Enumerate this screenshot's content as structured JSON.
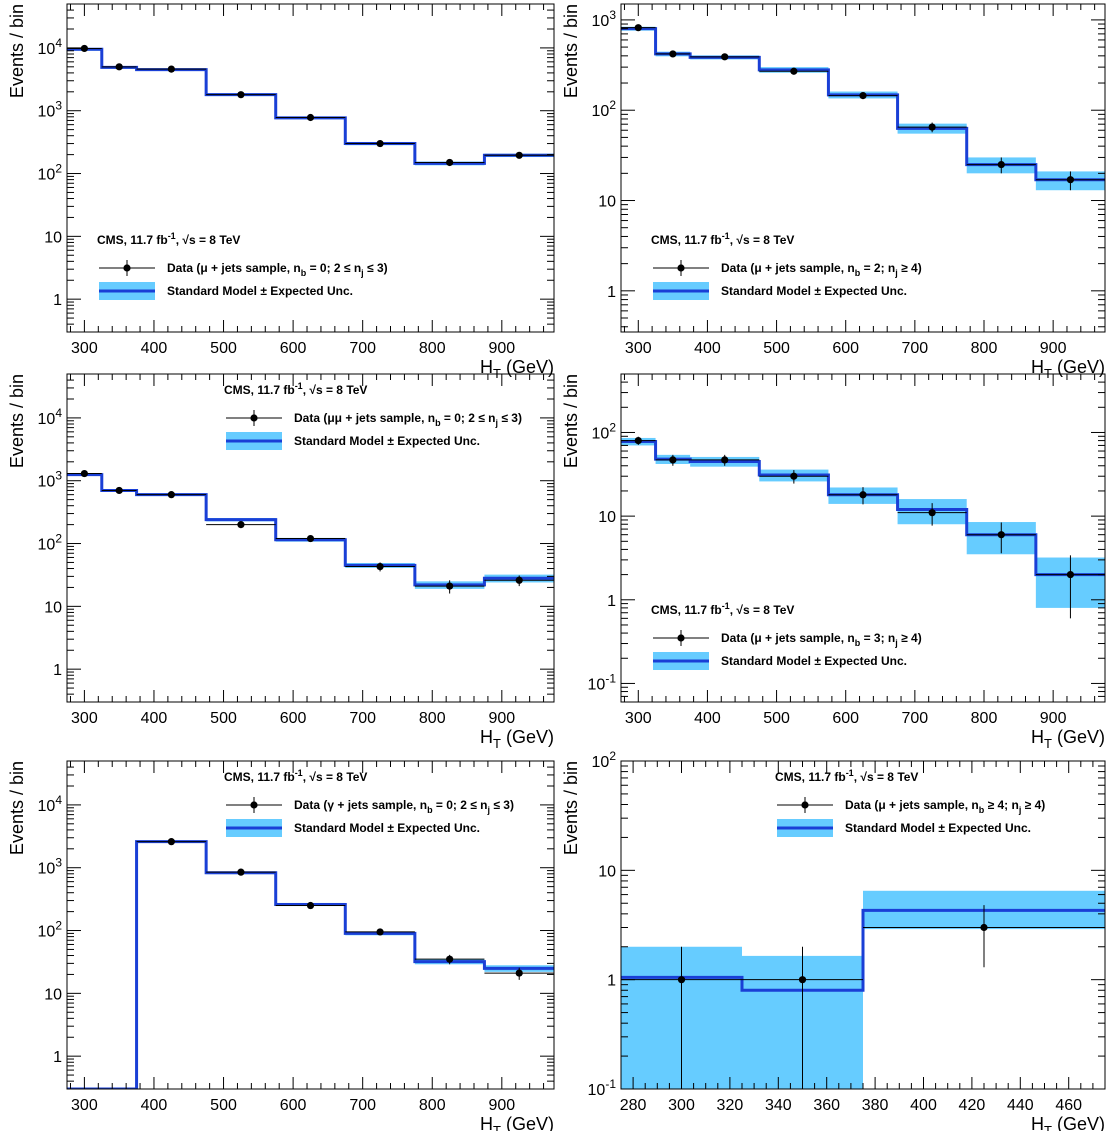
{
  "figure": {
    "panel_axis_labels": {
      "x": "H_T (GeV)",
      "y": "Events / bin"
    },
    "legend": {
      "cms_text": "CMS, 11.7 fb^-1, √s = 8 TeV",
      "model_label": "Standard Model ± Expected Unc."
    },
    "colors": {
      "model_line": "#1a3fd6",
      "uncertainty_band": "#66ccff",
      "data": "#000000"
    }
  },
  "chart_data": [
    {
      "type": "histogram",
      "panel": "top-left",
      "data_label": "Data (μ + jets sample, n_b = 0; 2 ≤ n_j ≤ 3)",
      "xlabel": "H_T (GeV)",
      "ylabel": "Events / bin",
      "xlim": [
        275,
        975
      ],
      "ylim": [
        0.3,
        50000
      ],
      "log_y": true,
      "x_ticks": [
        300,
        400,
        500,
        600,
        700,
        800,
        900
      ],
      "y_ticks": [
        {
          "v": 1,
          "t": "1"
        },
        {
          "v": 10,
          "t": "10"
        },
        {
          "v": 100,
          "t": "10^2"
        },
        {
          "v": 1000,
          "t": "10^3"
        },
        {
          "v": 10000,
          "t": "10^4"
        }
      ],
      "legend_position": "bottom-left",
      "bin_edges": [
        275,
        325,
        375,
        475,
        575,
        675,
        775,
        875,
        975
      ],
      "model": [
        9500,
        4900,
        4500,
        1800,
        770,
        300,
        145,
        195
      ],
      "model_unc": [
        500,
        250,
        220,
        90,
        40,
        18,
        10,
        12
      ],
      "data_x": [
        300,
        350,
        425,
        525,
        625,
        725,
        825,
        925
      ],
      "data_y": [
        9800,
        5000,
        4600,
        1800,
        780,
        300,
        150,
        195
      ],
      "data_err": [
        99,
        71,
        68,
        42,
        28,
        17,
        12,
        14
      ]
    },
    {
      "type": "histogram",
      "panel": "top-right",
      "data_label": "Data (μ + jets sample, n_b = 2; n_j ≥ 4)",
      "xlabel": "H_T (GeV)",
      "ylabel": "Events / bin",
      "xlim": [
        275,
        975
      ],
      "ylim": [
        0.35,
        1500
      ],
      "log_y": true,
      "x_ticks": [
        300,
        400,
        500,
        600,
        700,
        800,
        900
      ],
      "y_ticks": [
        {
          "v": 1,
          "t": "1"
        },
        {
          "v": 10,
          "t": "10"
        },
        {
          "v": 100,
          "t": "10^2"
        },
        {
          "v": 1000,
          "t": "10^3"
        }
      ],
      "legend_position": "bottom-left",
      "bin_edges": [
        275,
        325,
        375,
        475,
        575,
        675,
        775,
        875,
        975
      ],
      "model": [
        800,
        420,
        385,
        280,
        148,
        63,
        25,
        17
      ],
      "model_unc": [
        40,
        25,
        20,
        20,
        13,
        8,
        5,
        4
      ],
      "data_x": [
        300,
        350,
        425,
        525,
        625,
        725,
        825,
        925
      ],
      "data_y": [
        820,
        420,
        390,
        270,
        145,
        65,
        25,
        17
      ],
      "data_err": [
        29,
        20,
        20,
        16,
        12,
        8,
        5,
        4
      ]
    },
    {
      "type": "histogram",
      "panel": "middle-left",
      "data_label": "Data (μμ + jets sample, n_b = 0; 2 ≤ n_j ≤ 3)",
      "xlabel": "H_T (GeV)",
      "ylabel": "Events / bin",
      "xlim": [
        275,
        975
      ],
      "ylim": [
        0.3,
        50000
      ],
      "log_y": true,
      "x_ticks": [
        300,
        400,
        500,
        600,
        700,
        800,
        900
      ],
      "y_ticks": [
        {
          "v": 1,
          "t": "1"
        },
        {
          "v": 10,
          "t": "10"
        },
        {
          "v": 100,
          "t": "10^2"
        },
        {
          "v": 1000,
          "t": "10^3"
        },
        {
          "v": 10000,
          "t": "10^4"
        }
      ],
      "legend_position": "top-right",
      "bin_edges": [
        275,
        325,
        375,
        475,
        575,
        675,
        775,
        875,
        975
      ],
      "model": [
        1250,
        700,
        600,
        240,
        115,
        45,
        22,
        28
      ],
      "model_unc": [
        60,
        35,
        30,
        15,
        8,
        4,
        3,
        4
      ],
      "data_x": [
        300,
        350,
        425,
        525,
        625,
        725,
        825,
        925
      ],
      "data_y": [
        1300,
        700,
        600,
        200,
        120,
        43,
        21,
        26
      ],
      "data_err": [
        36,
        26,
        24,
        14,
        11,
        7,
        5,
        5
      ]
    },
    {
      "type": "histogram",
      "panel": "middle-right",
      "data_label": "Data (μ + jets sample, n_b = 3; n_j ≥ 4)",
      "xlabel": "H_T (GeV)",
      "ylabel": "Events / bin",
      "xlim": [
        275,
        975
      ],
      "ylim": [
        0.06,
        500
      ],
      "log_y": true,
      "x_ticks": [
        300,
        400,
        500,
        600,
        700,
        800,
        900
      ],
      "y_ticks": [
        {
          "v": 0.1,
          "t": "10^-1"
        },
        {
          "v": 1,
          "t": "1"
        },
        {
          "v": 10,
          "t": "10"
        },
        {
          "v": 100,
          "t": "10^2"
        }
      ],
      "legend_position": "bottom-left",
      "bin_edges": [
        275,
        325,
        375,
        475,
        575,
        675,
        775,
        875,
        975
      ],
      "model": [
        78,
        48,
        45,
        31,
        18,
        12,
        6,
        2
      ],
      "model_unc": [
        8,
        6,
        6,
        5,
        4,
        4,
        2.5,
        1.2
      ],
      "data_x": [
        300,
        350,
        425,
        525,
        625,
        725,
        825,
        925
      ],
      "data_y": [
        80,
        47,
        47,
        30,
        18,
        11,
        6,
        2
      ],
      "data_err": [
        9,
        7,
        7,
        5.5,
        4.2,
        3.3,
        2.4,
        1.4
      ]
    },
    {
      "type": "histogram",
      "panel": "bottom-left",
      "data_label": "Data (γ + jets sample, n_b = 0; 2 ≤ n_j ≤ 3)",
      "xlabel": "H_T (GeV)",
      "ylabel": "Events / bin",
      "xlim": [
        275,
        975
      ],
      "ylim": [
        0.3,
        50000
      ],
      "log_y": true,
      "x_ticks": [
        300,
        400,
        500,
        600,
        700,
        800,
        900
      ],
      "y_ticks": [
        {
          "v": 1,
          "t": "1"
        },
        {
          "v": 10,
          "t": "10"
        },
        {
          "v": 100,
          "t": "10^2"
        },
        {
          "v": 1000,
          "t": "10^3"
        },
        {
          "v": 10000,
          "t": "10^4"
        }
      ],
      "legend_position": "top-right",
      "bin_edges": [
        275,
        375,
        475,
        575,
        675,
        775,
        875,
        975
      ],
      "model": [
        0.3,
        2600,
        830,
        260,
        90,
        32,
        25
      ],
      "model_unc": [
        0,
        100,
        40,
        15,
        6,
        3,
        3
      ],
      "data_x": [
        425,
        525,
        625,
        725,
        825,
        925
      ],
      "data_y": [
        2600,
        850,
        250,
        95,
        35,
        21
      ],
      "data_err": [
        51,
        29,
        16,
        10,
        6,
        4.6
      ]
    },
    {
      "type": "histogram",
      "panel": "bottom-right",
      "data_label": "Data (μ + jets sample, n_b ≥ 4; n_j ≥ 4)",
      "xlabel": "H_T (GeV)",
      "ylabel": "Events / bin",
      "xlim": [
        275,
        475
      ],
      "ylim": [
        0.1,
        100
      ],
      "log_y": true,
      "x_ticks": [
        280,
        300,
        320,
        340,
        360,
        380,
        400,
        420,
        440,
        460
      ],
      "y_ticks": [
        {
          "v": 0.1,
          "t": "10^-1"
        },
        {
          "v": 1,
          "t": "1"
        },
        {
          "v": 10,
          "t": "10"
        },
        {
          "v": 100,
          "t": "10^2"
        }
      ],
      "legend_position": "top-right",
      "bin_edges": [
        275,
        325,
        375,
        475
      ],
      "model": [
        1.05,
        0.8,
        4.3
      ],
      "band_lo": [
        0.1,
        0.1,
        2.9
      ],
      "band_hi": [
        2.0,
        1.65,
        6.5
      ],
      "data_x": [
        300,
        350,
        425
      ],
      "data_y": [
        1,
        1,
        3
      ],
      "data_lo": [
        0.1,
        0.1,
        1.3
      ],
      "data_hi": [
        2.0,
        2.0,
        4.8
      ]
    }
  ]
}
